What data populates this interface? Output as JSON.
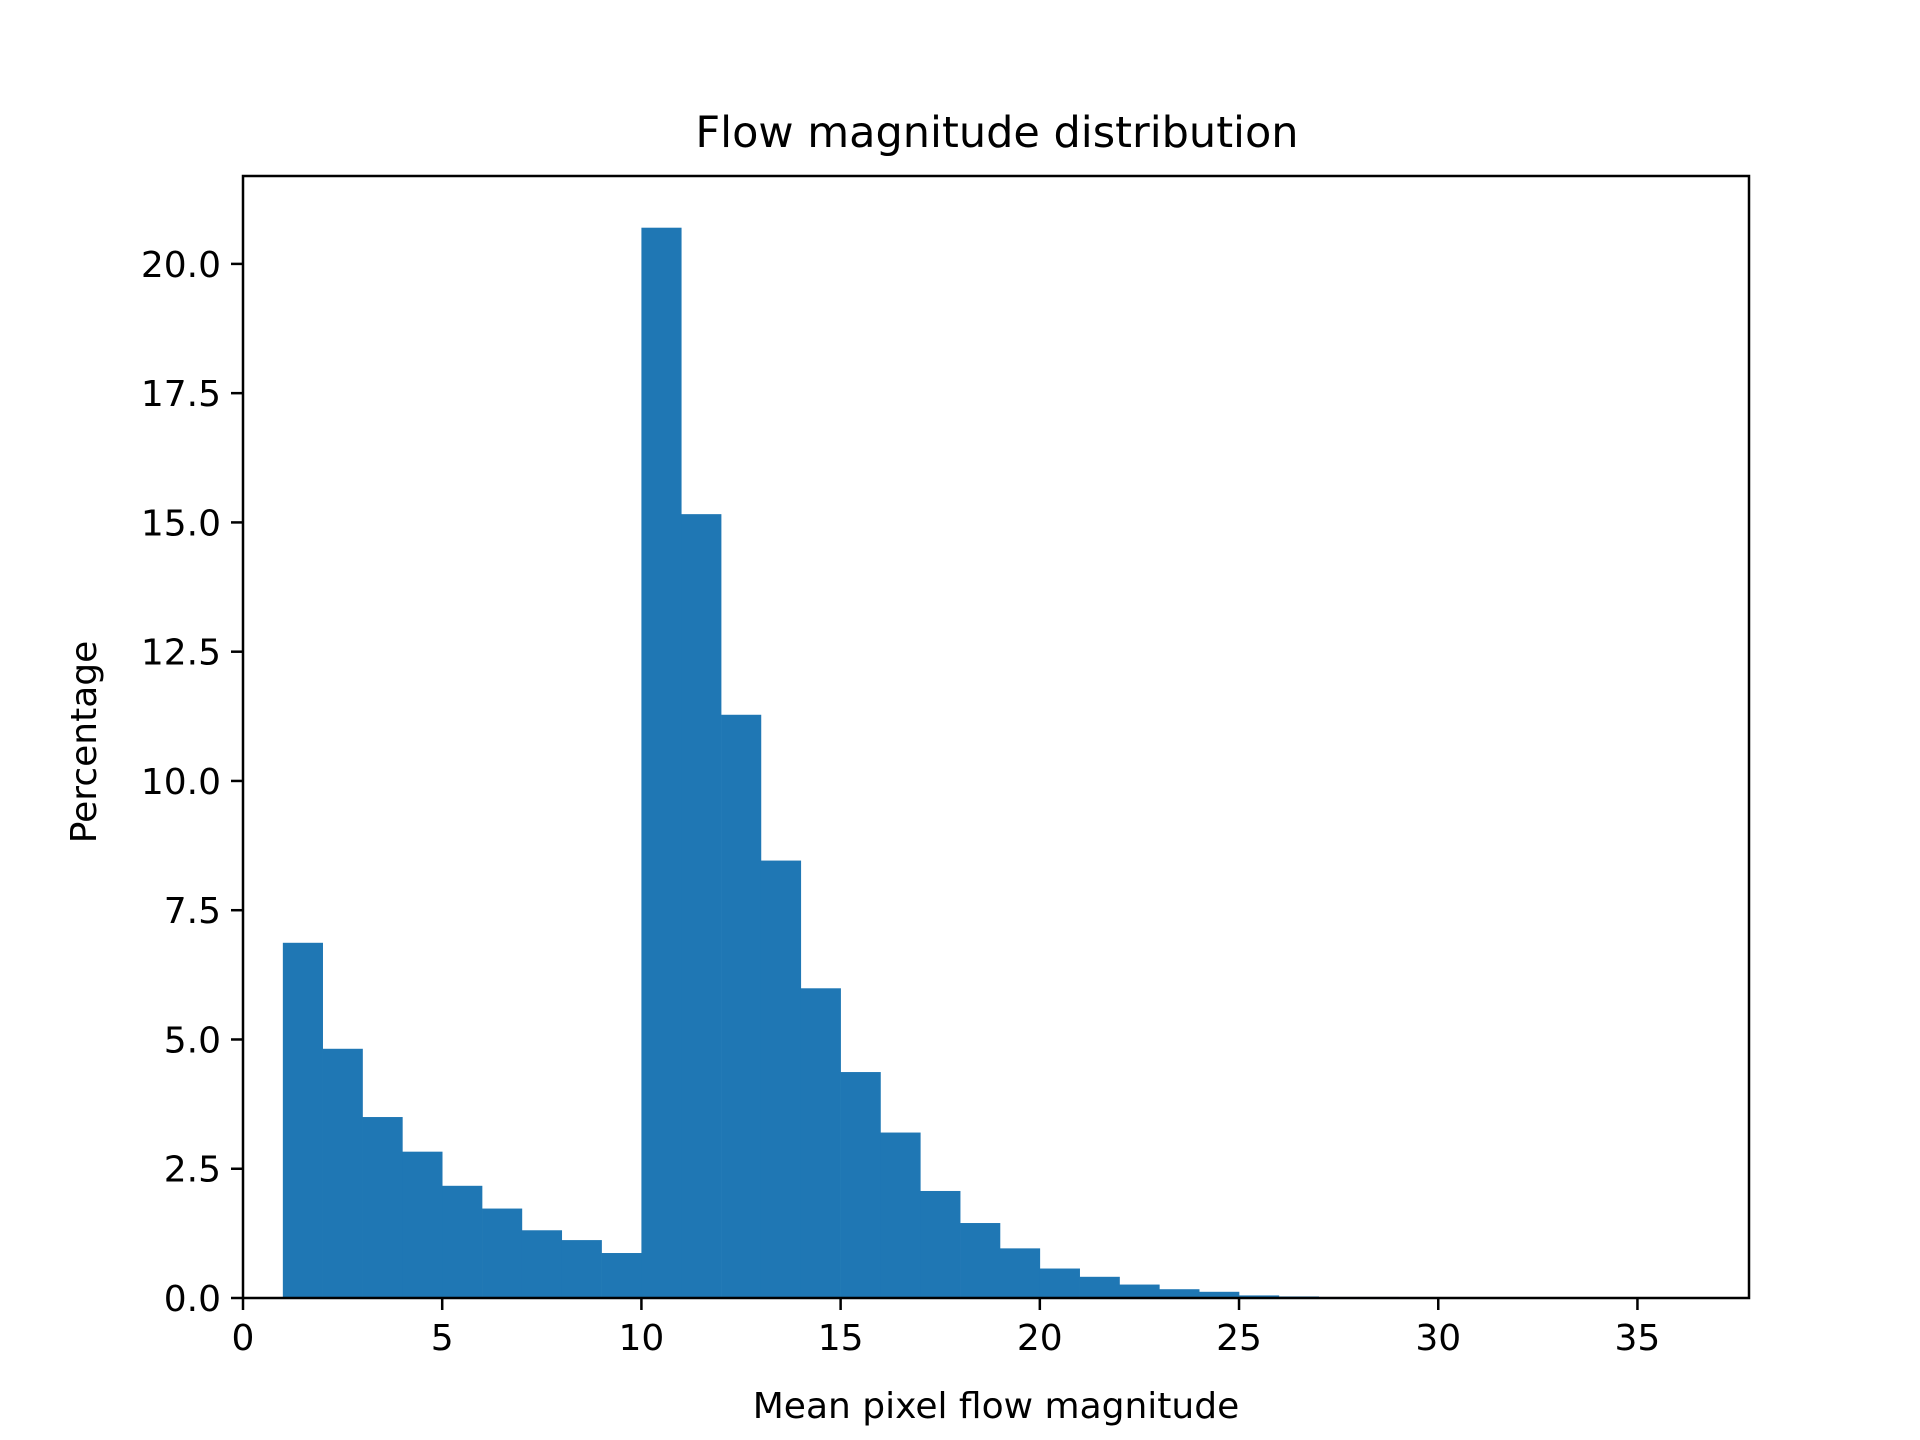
{
  "chart_data": {
    "type": "bar",
    "title": "Flow magnitude distribution",
    "xlabel": "Mean pixel flow magnitude",
    "ylabel": "Percentage",
    "xlim": [
      0,
      37.8
    ],
    "ylim": [
      0,
      21.7
    ],
    "bin_width": 1,
    "grid": false,
    "legend": "none",
    "bar_color": "#1f77b4",
    "x_ticks": [
      0,
      5,
      10,
      15,
      20,
      25,
      30,
      35
    ],
    "x_tick_labels": [
      "0",
      "5",
      "10",
      "15",
      "20",
      "25",
      "30",
      "35"
    ],
    "y_ticks": [
      0,
      2.5,
      5,
      7.5,
      10,
      12.5,
      15,
      17.5,
      20
    ],
    "y_tick_labels": [
      "0.0",
      "2.5",
      "5.0",
      "7.5",
      "10.0",
      "12.5",
      "15.0",
      "17.5",
      "20.0"
    ],
    "bins": [
      {
        "x_start": 1,
        "value": 6.87
      },
      {
        "x_start": 2,
        "value": 4.82
      },
      {
        "x_start": 3,
        "value": 3.5
      },
      {
        "x_start": 4,
        "value": 2.83
      },
      {
        "x_start": 5,
        "value": 2.17
      },
      {
        "x_start": 6,
        "value": 1.73
      },
      {
        "x_start": 7,
        "value": 1.31
      },
      {
        "x_start": 8,
        "value": 1.12
      },
      {
        "x_start": 9,
        "value": 0.87
      },
      {
        "x_start": 10,
        "value": 20.7
      },
      {
        "x_start": 11,
        "value": 15.16
      },
      {
        "x_start": 12,
        "value": 11.28
      },
      {
        "x_start": 13,
        "value": 8.46
      },
      {
        "x_start": 14,
        "value": 5.99
      },
      {
        "x_start": 15,
        "value": 4.37
      },
      {
        "x_start": 16,
        "value": 3.2
      },
      {
        "x_start": 17,
        "value": 2.07
      },
      {
        "x_start": 18,
        "value": 1.45
      },
      {
        "x_start": 19,
        "value": 0.96
      },
      {
        "x_start": 20,
        "value": 0.57
      },
      {
        "x_start": 21,
        "value": 0.41
      },
      {
        "x_start": 22,
        "value": 0.26
      },
      {
        "x_start": 23,
        "value": 0.17
      },
      {
        "x_start": 24,
        "value": 0.12
      },
      {
        "x_start": 25,
        "value": 0.05
      },
      {
        "x_start": 26,
        "value": 0.03
      },
      {
        "x_start": 27,
        "value": 0.02
      },
      {
        "x_start": 28,
        "value": 0.02
      },
      {
        "x_start": 29,
        "value": 0.01
      },
      {
        "x_start": 30,
        "value": 0.01
      },
      {
        "x_start": 31,
        "value": 0.01
      },
      {
        "x_start": 32,
        "value": 0.01
      },
      {
        "x_start": 33,
        "value": 0.01
      },
      {
        "x_start": 34,
        "value": 0.01
      },
      {
        "x_start": 35,
        "value": 0.01
      },
      {
        "x_start": 36,
        "value": 0.01
      }
    ]
  }
}
